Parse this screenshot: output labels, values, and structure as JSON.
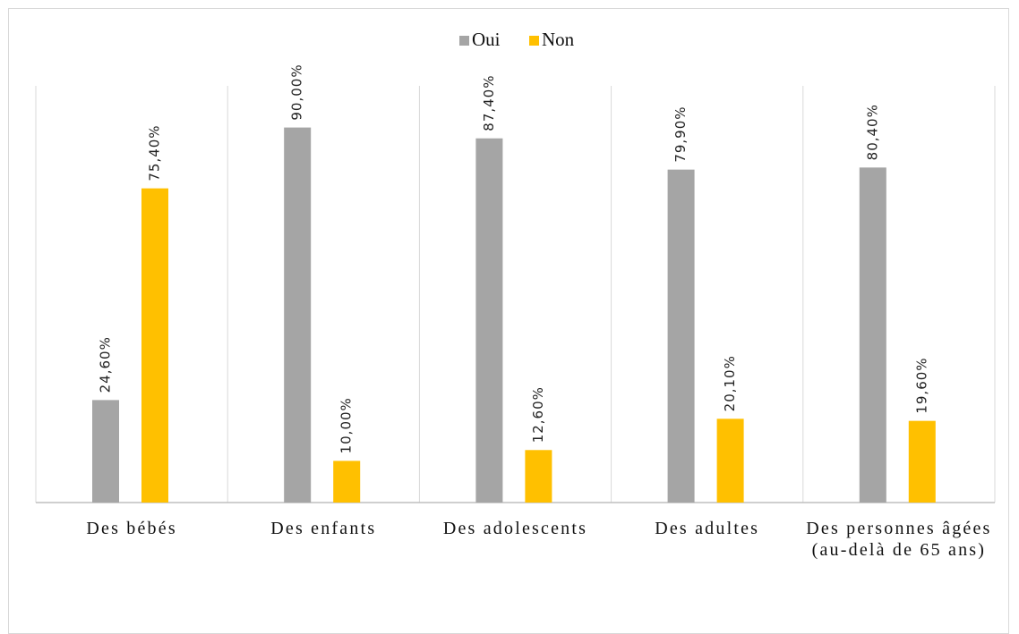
{
  "chart_data": {
    "type": "bar",
    "categories": [
      "Des bébés",
      "Des enfants",
      "Des adolescents",
      "Des adultes",
      "Des personnes âgées (au-delà de 65 ans)"
    ],
    "series": [
      {
        "name": "Oui",
        "color": "#a5a5a5",
        "values": [
          24.6,
          90.0,
          87.4,
          79.9,
          80.4
        ],
        "value_labels": [
          "24,60%",
          "90,00%",
          "87,40%",
          "79,90%",
          "80,40%"
        ]
      },
      {
        "name": "Non",
        "color": "#ffc000",
        "values": [
          75.4,
          10.0,
          12.6,
          20.1,
          19.6
        ],
        "value_labels": [
          "75,40%",
          "10,00%",
          "12,60%",
          "20,10%",
          "19,60%"
        ]
      }
    ],
    "ylim": [
      0,
      100
    ],
    "legend": "top"
  }
}
